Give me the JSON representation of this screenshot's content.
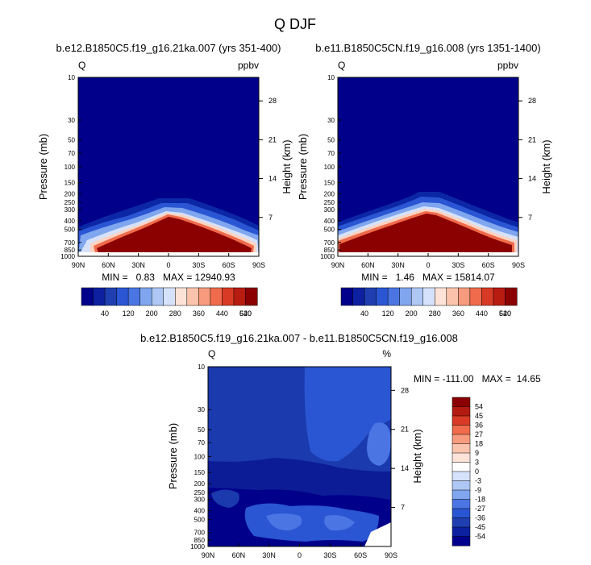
{
  "figure": {
    "title": "Q DJF"
  },
  "colors": {
    "bg_dark": "#00008b",
    "bg_mid": "#1f3fb0",
    "white": "#ffffff",
    "peak": "#8b0000"
  },
  "chart_data": [
    {
      "type": "heatmap",
      "id": "top-left",
      "title": "b.e12.B1850C5.f19_g16.21ka.007 (yrs 351-400)",
      "left_label": "Q",
      "right_label": "ppbv",
      "ylabel": "Pressure (mb)",
      "ylabel_right": "Height (km)",
      "x_ticks": [
        "90N",
        "60N",
        "30N",
        "0",
        "30S",
        "60S",
        "90S"
      ],
      "y_ticks": [
        "10",
        "30",
        "50",
        "70",
        "100",
        "150",
        "200",
        "250",
        "300",
        "400",
        "500",
        "700",
        "850",
        "1000"
      ],
      "y_ticks_right": [
        "28",
        "21",
        "14",
        "7"
      ],
      "stats": {
        "min": "0.83",
        "max": "12940.93"
      },
      "stats_text": "MIN =   0.83   MAX = 12940.93",
      "colorbar_labels": [
        "40",
        "120",
        "200",
        "280",
        "360",
        "440",
        "520",
        "640"
      ]
    },
    {
      "type": "heatmap",
      "id": "top-right",
      "title": "b.e11.B1850C5CN.f19_g16.008 (yrs 1351-1400)",
      "left_label": "Q",
      "right_label": "ppbv",
      "ylabel": "Pressure (mb)",
      "ylabel_right": "Height (km)",
      "x_ticks": [
        "90N",
        "60N",
        "30N",
        "0",
        "30S",
        "60S",
        "90S"
      ],
      "y_ticks": [
        "10",
        "30",
        "50",
        "70",
        "100",
        "150",
        "200",
        "250",
        "300",
        "400",
        "500",
        "700",
        "850",
        "1000"
      ],
      "y_ticks_right": [
        "28",
        "21",
        "14",
        "7"
      ],
      "stats": {
        "min": "1.46",
        "max": "15814.07"
      },
      "stats_text": "MIN =   1.46   MAX = 15814.07",
      "colorbar_labels": [
        "40",
        "120",
        "200",
        "280",
        "360",
        "440",
        "520",
        "640"
      ]
    },
    {
      "type": "heatmap",
      "id": "bottom-diff",
      "title": "b.e12.B1850C5.f19_g16.21ka.007 - b.e11.B1850C5CN.f19_g16.008",
      "left_label": "Q",
      "right_label": "%",
      "ylabel": "Pressure (mb)",
      "ylabel_right": "Height (km)",
      "x_ticks": [
        "90N",
        "60N",
        "30N",
        "0",
        "30S",
        "60S",
        "90S"
      ],
      "y_ticks": [
        "10",
        "30",
        "50",
        "70",
        "100",
        "150",
        "200",
        "250",
        "300",
        "400",
        "500",
        "700",
        "850",
        "1000"
      ],
      "y_ticks_right": [
        "28",
        "21",
        "14",
        "7"
      ],
      "stats": {
        "min": "-111.00",
        "max": "14.65"
      },
      "stats_text": "MIN = -111.00   MAX =  14.65",
      "colorbar_labels": [
        "54",
        "45",
        "36",
        "27",
        "18",
        "9",
        "3",
        "0",
        "-3",
        "-9",
        "-18",
        "-27",
        "-36",
        "-45",
        "-54"
      ]
    }
  ]
}
